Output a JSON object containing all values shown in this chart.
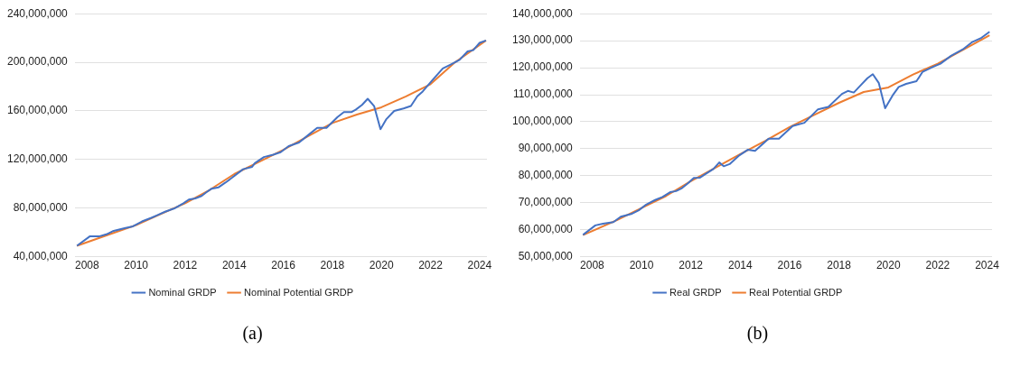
{
  "chart_data": [
    {
      "type": "line",
      "xlim": [
        2007.5,
        2024.3
      ],
      "xticks": [
        2008,
        2010,
        2012,
        2014,
        2016,
        2018,
        2020,
        2022,
        2024
      ],
      "ylim": [
        40000000,
        240000000
      ],
      "yticks": [
        {
          "value": 40000000,
          "label": "40,000,000"
        },
        {
          "value": 80000000,
          "label": "80,000,000"
        },
        {
          "value": 120000000,
          "label": "120,000,000"
        },
        {
          "value": 160000000,
          "label": "160,000,000"
        },
        {
          "value": 200000000,
          "label": "200,000,000"
        },
        {
          "value": 240000000,
          "label": "240,000,000"
        }
      ],
      "grid": "y",
      "legend": "bottom",
      "marker": "none",
      "annotations": [
        "(a)"
      ],
      "series": [
        {
          "name": "Nominal GRDP",
          "color": "#4472c4",
          "x": [
            2007.59,
            2008.11,
            2008.49,
            2008.79,
            2009.05,
            2009.53,
            2009.87,
            2010.24,
            2010.62,
            2010.84,
            2011.18,
            2011.59,
            2011.93,
            2012.15,
            2012.41,
            2012.67,
            2012.86,
            2013.08,
            2013.35,
            2013.64,
            2013.91,
            2014.36,
            2014.73,
            2014.84,
            2015.21,
            2015.59,
            2015.89,
            2016.22,
            2016.64,
            2017.01,
            2017.38,
            2017.76,
            2018.21,
            2018.47,
            2018.77,
            2018.95,
            2019.21,
            2019.44,
            2019.7,
            2019.96,
            2020.19,
            2020.52,
            2020.9,
            2021.2,
            2021.46,
            2021.68,
            2022.06,
            2022.5,
            2022.8,
            2023.18,
            2023.51,
            2023.74,
            2024.0,
            2024.26
          ],
          "values": [
            49000000,
            56700000,
            56700000,
            58400000,
            61000000,
            63400000,
            65000000,
            69000000,
            72000000,
            74000000,
            77000000,
            80000000,
            84000000,
            87000000,
            88000000,
            90000000,
            93000000,
            96000000,
            97000000,
            101000000,
            105000000,
            112000000,
            114000000,
            117000000,
            122000000,
            124000000,
            126000000,
            131000000,
            134000000,
            140000000,
            146000000,
            146000000,
            155000000,
            159000000,
            159000000,
            161000000,
            165000000,
            170000000,
            164000000,
            145000000,
            153000000,
            160000000,
            162000000,
            164000000,
            172000000,
            176000000,
            185000000,
            195000000,
            198000000,
            202000000,
            209000000,
            210000000,
            216000000,
            218000000
          ]
        },
        {
          "name": "Nominal Potential GRDP",
          "color": "#ed7d31",
          "x": [
            2007.59,
            2009,
            2010,
            2011,
            2012,
            2013,
            2014,
            2015,
            2016,
            2017,
            2018,
            2019,
            2020,
            2021,
            2022,
            2023,
            2024.26
          ],
          "values": [
            49000000,
            59000000,
            66000000,
            75000000,
            84000000,
            95000000,
            108000000,
            118000000,
            128000000,
            139000000,
            150000000,
            157000000,
            163000000,
            172000000,
            182000000,
            200000000,
            218000000
          ]
        }
      ]
    },
    {
      "type": "line",
      "xlim": [
        2007.5,
        2024.2
      ],
      "xticks": [
        2008,
        2010,
        2012,
        2014,
        2016,
        2018,
        2020,
        2022,
        2024
      ],
      "ylim": [
        50000000,
        140000000
      ],
      "yticks": [
        {
          "value": 50000000,
          "label": "50,000,000"
        },
        {
          "value": 60000000,
          "label": "60,000,000"
        },
        {
          "value": 70000000,
          "label": "70,000,000"
        },
        {
          "value": 80000000,
          "label": "80,000,000"
        },
        {
          "value": 90000000,
          "label": "90,000,000"
        },
        {
          "value": 100000000,
          "label": "100,000,000"
        },
        {
          "value": 110000000,
          "label": "110,000,000"
        },
        {
          "value": 120000000,
          "label": "120,000,000"
        },
        {
          "value": 130000000,
          "label": "130,000,000"
        },
        {
          "value": 140000000,
          "label": "140,000,000"
        }
      ],
      "grid": "y",
      "legend": "bottom",
      "marker": "none",
      "annotations": [
        "(b)"
      ],
      "series": [
        {
          "name": "Real GRDP",
          "color": "#4472c4",
          "x": [
            2007.63,
            2008.13,
            2008.44,
            2008.86,
            2009.16,
            2009.58,
            2009.89,
            2010.19,
            2010.55,
            2010.85,
            2011.16,
            2011.4,
            2011.64,
            2011.88,
            2012.12,
            2012.37,
            2012.61,
            2012.91,
            2013.15,
            2013.33,
            2013.57,
            2013.93,
            2014.3,
            2014.6,
            2015.15,
            2015.57,
            2016.12,
            2016.6,
            2017.15,
            2017.57,
            2018.12,
            2018.36,
            2018.6,
            2018.85,
            2019.15,
            2019.37,
            2019.61,
            2019.87,
            2020.17,
            2020.42,
            2020.72,
            2021.14,
            2021.39,
            2021.81,
            2022.11,
            2022.54,
            2023.02,
            2023.38,
            2023.74,
            2024.1
          ],
          "values": [
            58100000,
            61600000,
            62200000,
            62800000,
            64800000,
            65800000,
            67200000,
            69300000,
            71000000,
            72100000,
            73900000,
            74300000,
            75400000,
            77200000,
            79200000,
            79300000,
            80700000,
            82500000,
            84900000,
            83500000,
            84300000,
            87300000,
            89600000,
            89200000,
            93700000,
            93700000,
            98400000,
            99600000,
            104600000,
            105500000,
            110300000,
            111400000,
            110800000,
            113200000,
            116100000,
            117600000,
            114400000,
            105000000,
            109700000,
            112900000,
            114000000,
            115000000,
            118500000,
            120300000,
            121500000,
            124400000,
            126800000,
            129400000,
            130900000,
            133300000
          ]
        },
        {
          "name": "Real Potential GRDP",
          "color": "#ed7d31",
          "x": [
            2007.63,
            2009,
            2010,
            2011,
            2012,
            2013,
            2014,
            2015,
            2016,
            2017,
            2018,
            2019,
            2020,
            2021,
            2022,
            2023,
            2024.1
          ],
          "values": [
            58000000,
            63500000,
            68000000,
            72500000,
            78000000,
            83000000,
            88000000,
            92800000,
            98000000,
            102500000,
            107000000,
            111000000,
            112700000,
            117500000,
            121500000,
            126500000,
            132000000
          ]
        }
      ]
    }
  ]
}
